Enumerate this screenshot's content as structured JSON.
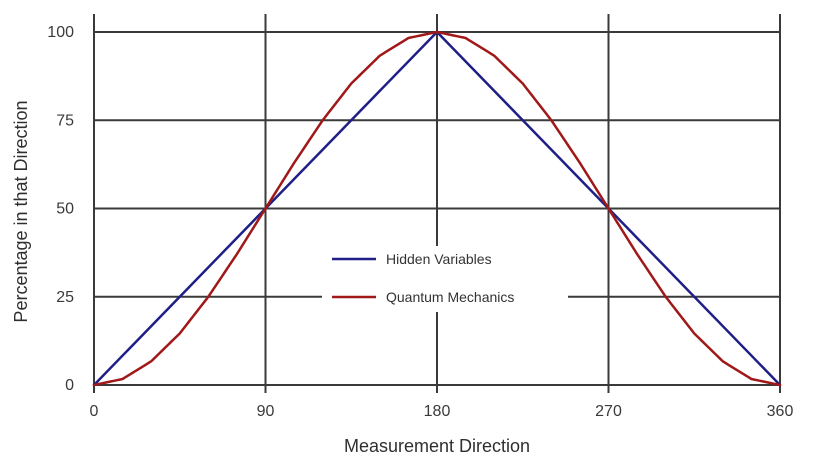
{
  "chart_data": {
    "type": "line",
    "title": "",
    "xlabel": "Measurement Direction",
    "ylabel": "Percentage in that Direction",
    "xlim": [
      0,
      360
    ],
    "ylim": [
      0,
      100
    ],
    "x_ticks": [
      0,
      90,
      180,
      270,
      360
    ],
    "y_ticks": [
      0,
      25,
      50,
      75,
      100
    ],
    "x_tick_labels": [
      "0",
      "90",
      "180",
      "270",
      "360"
    ],
    "y_tick_labels": [
      "0",
      "25",
      "50",
      "75",
      "100"
    ],
    "grid": true,
    "legend_position": "center",
    "series": [
      {
        "name": "Hidden Variables",
        "color": "#1f1f87",
        "x": [
          0,
          90,
          180,
          270,
          360
        ],
        "y": [
          0,
          50,
          100,
          50,
          0
        ]
      },
      {
        "name": "Quantum Mechanics",
        "color": "#a01818",
        "x": [
          0,
          15,
          30,
          45,
          60,
          75,
          90,
          105,
          120,
          135,
          150,
          165,
          180,
          195,
          210,
          225,
          240,
          255,
          270,
          285,
          300,
          315,
          330,
          345,
          360
        ],
        "y": [
          0,
          1.7,
          6.7,
          14.6,
          25,
          37.1,
          50,
          62.9,
          75,
          85.4,
          93.3,
          98.3,
          100,
          98.3,
          93.3,
          85.4,
          75,
          62.9,
          50,
          37.1,
          25,
          14.6,
          6.7,
          1.7,
          0
        ]
      }
    ]
  }
}
